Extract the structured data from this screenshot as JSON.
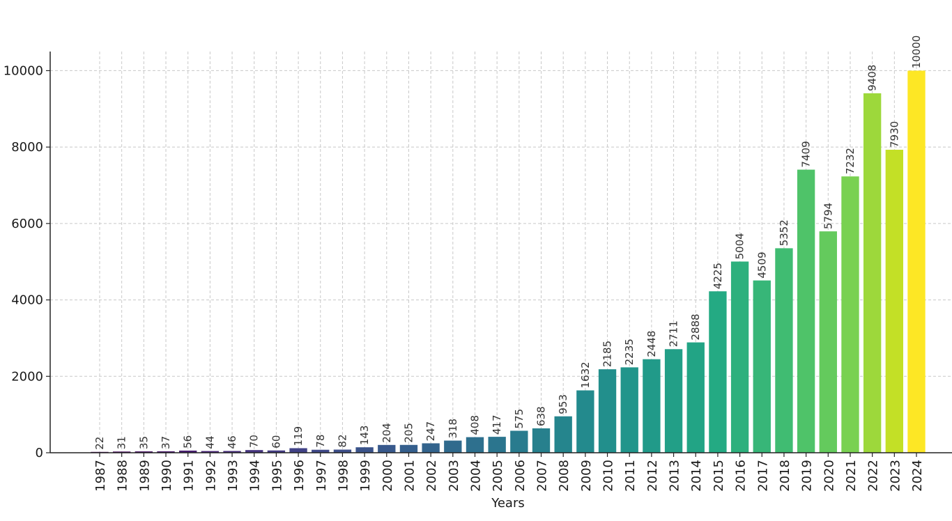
{
  "chart_data": {
    "type": "bar",
    "title": "",
    "xlabel": "Years",
    "ylabel": "",
    "ylim": [
      0,
      10500
    ],
    "yticks": [
      0,
      2000,
      4000,
      6000,
      8000,
      10000
    ],
    "grid": true,
    "colormap": "viridis",
    "categories": [
      "1987",
      "1988",
      "1989",
      "1990",
      "1991",
      "1992",
      "1993",
      "1994",
      "1995",
      "1996",
      "1997",
      "1998",
      "1999",
      "2000",
      "2001",
      "2002",
      "2003",
      "2004",
      "2005",
      "2006",
      "2007",
      "2008",
      "2009",
      "2010",
      "2011",
      "2012",
      "2013",
      "2014",
      "2015",
      "2016",
      "2017",
      "2018",
      "2019",
      "2020",
      "2021",
      "2022",
      "2023",
      "2024"
    ],
    "values": [
      22,
      31,
      35,
      37,
      56,
      44,
      46,
      70,
      60,
      119,
      78,
      82,
      143,
      204,
      205,
      247,
      318,
      408,
      417,
      575,
      638,
      953,
      1632,
      2185,
      2235,
      2448,
      2711,
      2888,
      4225,
      5004,
      4509,
      5352,
      7409,
      5794,
      7232,
      9408,
      7930,
      10000
    ]
  }
}
